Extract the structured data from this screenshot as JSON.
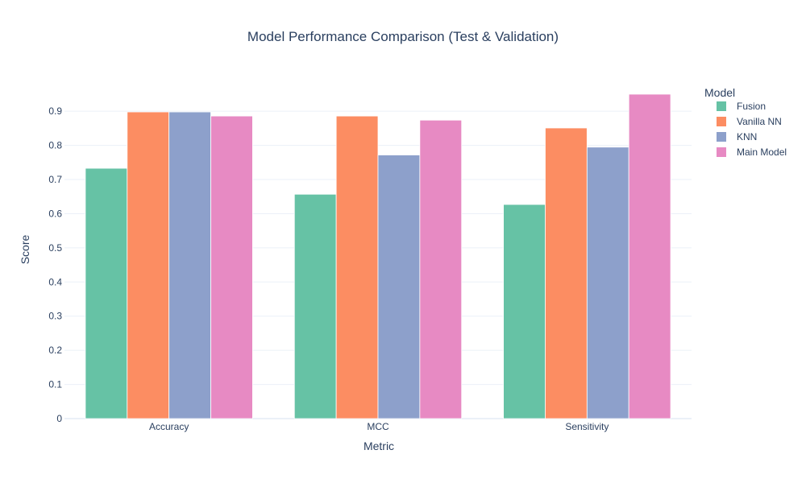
{
  "chart_data": {
    "type": "bar",
    "title": "Model Performance Comparison (Test & Validation)",
    "xlabel": "Metric",
    "ylabel": "Score",
    "ylim": [
      0,
      0.99
    ],
    "yticks": [
      0,
      0.1,
      0.2,
      0.3,
      0.4,
      0.5,
      0.6,
      0.7,
      0.8,
      0.9
    ],
    "ytick_labels": [
      "0",
      "0.1",
      "0.2",
      "0.3",
      "0.4",
      "0.5",
      "0.6",
      "0.7",
      "0.8",
      "0.9"
    ],
    "categories": [
      "Accuracy",
      "MCC",
      "Sensitivity"
    ],
    "legend_title": "Model",
    "legend_position": "top-right",
    "grid": true,
    "series": [
      {
        "name": "Fusion",
        "color": "#66c2a5",
        "values": [
          0.733,
          0.657,
          0.627
        ]
      },
      {
        "name": "Vanilla NN",
        "color": "#fc8d62",
        "values": [
          0.898,
          0.886,
          0.851
        ]
      },
      {
        "name": "KNN",
        "color": "#8da0cb",
        "values": [
          0.898,
          0.772,
          0.795
        ]
      },
      {
        "name": "Main Model",
        "color": "#e78ac3",
        "values": [
          0.886,
          0.874,
          0.95
        ]
      }
    ]
  }
}
